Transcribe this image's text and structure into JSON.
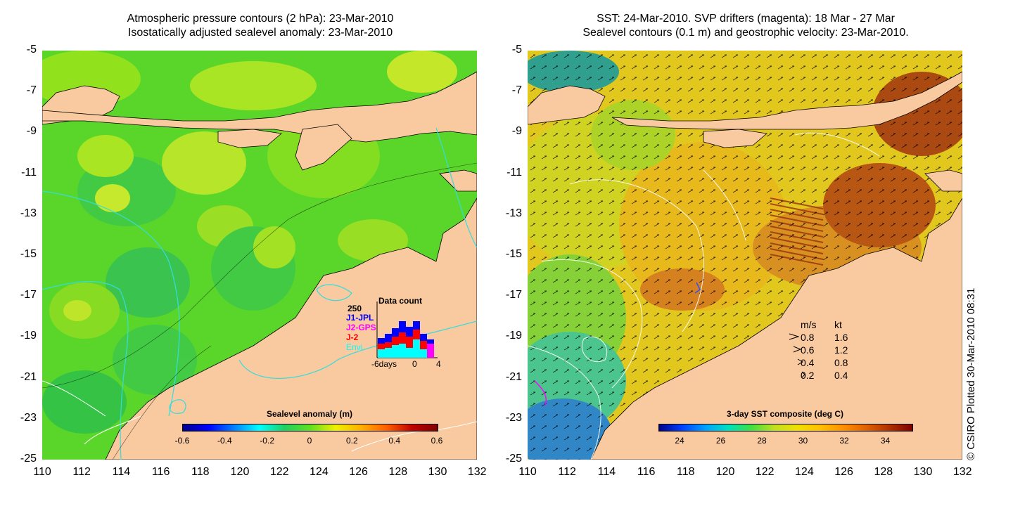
{
  "left": {
    "title_line1": "Atmospheric pressure contours (2 hPa): 23-Mar-2010",
    "title_line2": "Isostatically adjusted sealevel anomaly: 23-Mar-2010",
    "colorbar": {
      "title": "Sealevel anomaly (m)",
      "ticks": [
        "-0.6",
        "-0.4",
        "-0.2",
        "0",
        "0.2",
        "0.4",
        "0.6"
      ]
    },
    "data_count": {
      "title": "Data count",
      "max_label": "250",
      "series": [
        {
          "name": "J1-JPL",
          "color": "#0000ff"
        },
        {
          "name": "J2-GPS",
          "color": "#ff00ff"
        },
        {
          "name": "J-2",
          "color": "#ff0000"
        },
        {
          "name": "Envi",
          "color": "#00ffff"
        }
      ],
      "x_ticks": [
        "-6days",
        "0",
        "4"
      ]
    }
  },
  "right": {
    "title_line1": "SST: 24-Mar-2010. SVP drifters (magenta): 18 Mar - 27 Mar",
    "title_line2": "Sealevel contours (0.1 m) and geostrophic velocity: 23-Mar-2010.",
    "colorbar": {
      "title": "3-day SST composite (deg C)",
      "ticks": [
        "24",
        "26",
        "28",
        "30",
        "32",
        "34"
      ]
    },
    "velocity_legend": {
      "header_ms": "m/s",
      "header_kt": "kt",
      "rows": [
        {
          "ms": "0.8",
          "kt": "1.6"
        },
        {
          "ms": "0.6",
          "kt": "1.2"
        },
        {
          "ms": "0.4",
          "kt": "0.8"
        },
        {
          "ms": "0.2",
          "kt": "0.4"
        }
      ]
    }
  },
  "axes": {
    "y_ticks": [
      "-5",
      "-7",
      "-9",
      "-11",
      "-13",
      "-15",
      "-17",
      "-19",
      "-21",
      "-23",
      "-25"
    ],
    "x_ticks": [
      "110",
      "112",
      "114",
      "116",
      "118",
      "120",
      "122",
      "124",
      "126",
      "128",
      "130",
      "132"
    ]
  },
  "credit": "© CSIRO Plotted 30-Mar-2010 08:31",
  "colors": {
    "land": "#f9c9a0",
    "ocean_left": "#55dd22",
    "ocean_right": "#e6c020",
    "coast_warm": "#d98020",
    "contour_cyan": "#33dddd"
  }
}
